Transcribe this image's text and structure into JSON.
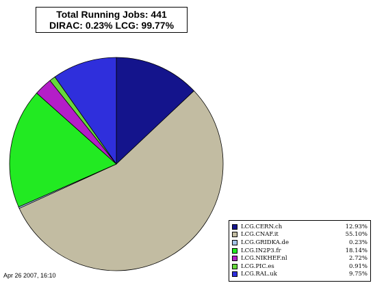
{
  "header": {
    "title_line1": "Total Running Jobs: 441",
    "title_line2": "DIRAC: 0.23%  LCG: 99.77%"
  },
  "footer": {
    "timestamp": "Apr 26 2007, 16:10"
  },
  "chart_data": {
    "type": "pie",
    "title": "Total Running Jobs: 441",
    "subtitle": "DIRAC: 0.23%  LCG: 99.77%",
    "legend_position": "bottom-right",
    "start": "top",
    "direction": "clockwise",
    "slices": [
      {
        "label": "LCG.CERN.ch",
        "value": 12.93,
        "display": "12.93%",
        "color": "#14148c"
      },
      {
        "label": "LCG.CNAF.it",
        "value": 55.1,
        "display": "55.10%",
        "color": "#c2bca2"
      },
      {
        "label": "LCG.GRIDKA.de",
        "value": 0.23,
        "display": "0.23%",
        "color": "#a4c4e8"
      },
      {
        "label": "LCG.IN2P3.fr",
        "value": 18.14,
        "display": "18.14%",
        "color": "#22ea22"
      },
      {
        "label": "LCG.NIKHEF.nl",
        "value": 2.72,
        "display": "2.72%",
        "color": "#b41ec8"
      },
      {
        "label": "LCG.PIC.es",
        "value": 0.91,
        "display": "0.91%",
        "color": "#66d83c"
      },
      {
        "label": "LCG.RAL.uk",
        "value": 9.75,
        "display": "9.75%",
        "color": "#2f2fdc"
      }
    ]
  }
}
